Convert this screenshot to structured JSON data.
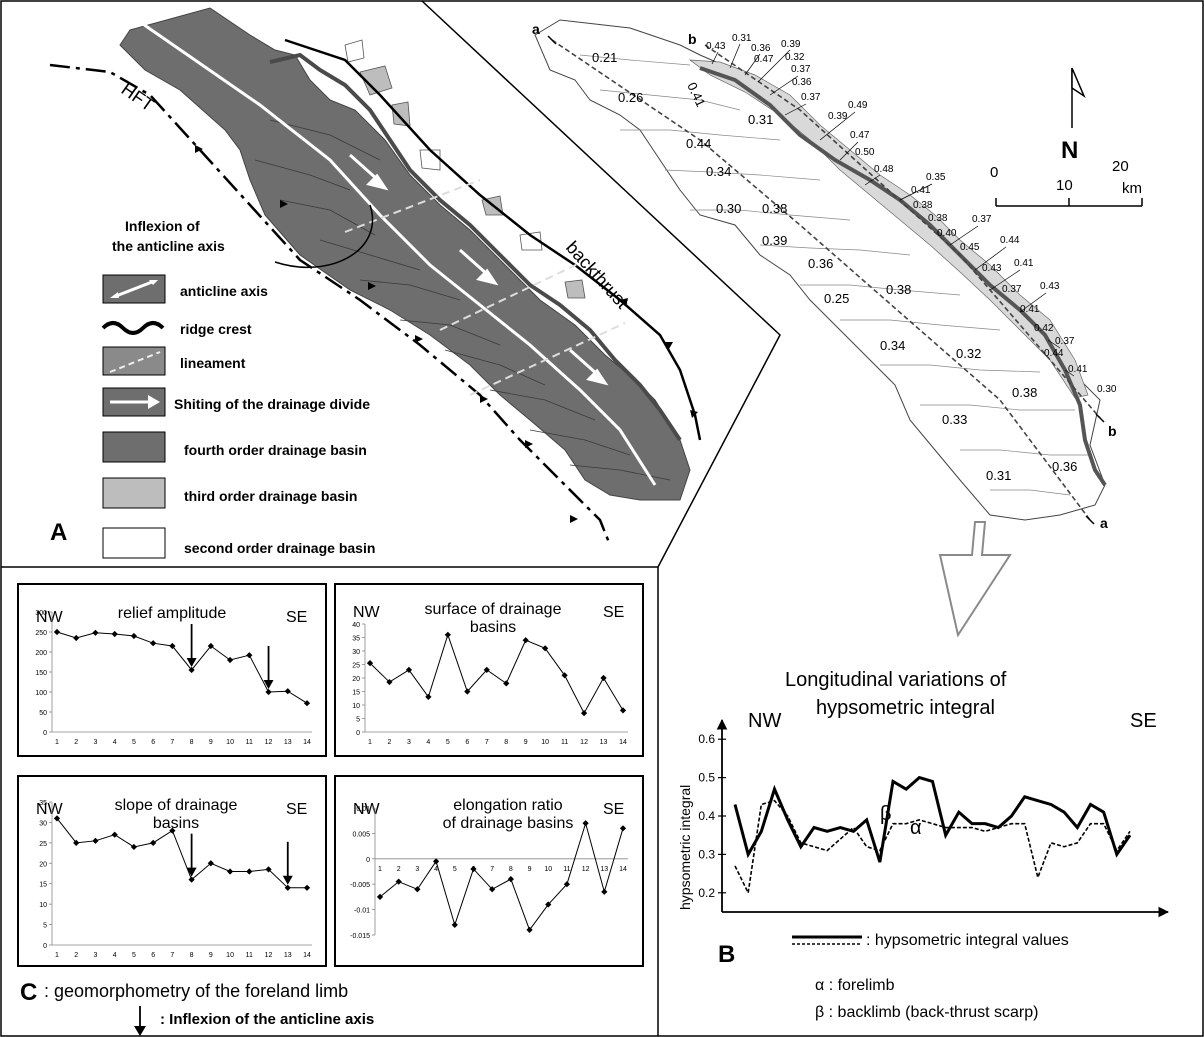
{
  "panelA": {
    "letter": "A",
    "hft": "HFT",
    "backthrust": "backthrust",
    "inflexion_label": [
      "Inflexion of",
      "the anticline axis"
    ],
    "legend": [
      {
        "id": "anticline",
        "label": "anticline axis"
      },
      {
        "id": "ridge",
        "label": "ridge crest"
      },
      {
        "id": "lineament",
        "label": "lineament"
      },
      {
        "id": "shift",
        "label": "Shiting of the drainage divide"
      },
      {
        "id": "fourth",
        "label": "fourth  order drainage basin"
      },
      {
        "id": "third",
        "label": "third  order drainage basin"
      },
      {
        "id": "second",
        "label": "second order drainage basin"
      }
    ],
    "colors": {
      "fourth": "#6e6e6e",
      "third": "#bdbdbd",
      "second": "#ffffff"
    }
  },
  "map": {
    "profile_a": "a",
    "profile_b": "b",
    "north": "N",
    "scale_ticks": [
      "0",
      "10",
      "20"
    ],
    "scale_unit": "km",
    "big_values": [
      "0.21",
      "0.26",
      "0.41",
      "0.31",
      "0.44",
      "0.34",
      "0.30",
      "0.38",
      "0.39",
      "0.36",
      "0.25",
      "0.38",
      "0.34",
      "0.32",
      "0.38",
      "0.33",
      "0.31",
      "0.36"
    ],
    "small_values": [
      "0.43",
      "0.31",
      "0.36",
      "0.39",
      "0.47",
      "0.32",
      "0.37",
      "0.36",
      "0.37",
      "0.49",
      "0.39",
      "0.47",
      "0.50",
      "0.48",
      "0.35",
      "0.41",
      "0.38",
      "0.38",
      "0.37",
      "0.40",
      "0.45",
      "0.44",
      "0.43",
      "0.41",
      "0.37",
      "0.43",
      "0.41",
      "0.42",
      "0.37",
      "0.44",
      "0.41",
      "0.30"
    ]
  },
  "panelB": {
    "letter": "B",
    "title": [
      "Longitudinal variations of",
      "hypsometric integral"
    ],
    "nw": "NW",
    "se": "SE",
    "ylabel": "hypsometric integral",
    "yticks": [
      "0.2",
      "0.3",
      "0.4",
      "0.5",
      "0.6"
    ],
    "legend_value": ":  hypsometric integral values",
    "alpha": "α",
    "beta": "β",
    "alpha_def": "α : forelimb",
    "beta_def": "β : backlimb (back-thrust scarp)"
  },
  "chart_data": [
    {
      "type": "line",
      "title": "relief amplitude",
      "x": [
        1,
        2,
        3,
        4,
        5,
        6,
        7,
        8,
        9,
        10,
        11,
        12,
        13,
        14
      ],
      "values": [
        250,
        235,
        248,
        245,
        240,
        222,
        215,
        155,
        215,
        180,
        192,
        100,
        102,
        72
      ],
      "ylim": [
        0,
        300
      ],
      "yticks": [
        0,
        50,
        100,
        150,
        200,
        250,
        300
      ],
      "arrows_at": [
        8,
        12
      ],
      "nw": "NW",
      "se": "SE"
    },
    {
      "type": "line",
      "title": "surface of drainage basins",
      "x": [
        1,
        2,
        3,
        4,
        5,
        6,
        7,
        8,
        9,
        10,
        11,
        12,
        13,
        14
      ],
      "values": [
        25.5,
        18.5,
        23,
        13,
        36,
        15,
        23,
        18,
        34,
        31,
        21,
        7,
        20,
        8
      ],
      "ylim": [
        0,
        40
      ],
      "yticks": [
        0,
        5,
        10,
        15,
        20,
        25,
        30,
        35,
        40
      ],
      "nw": "NW",
      "se": "SE"
    },
    {
      "type": "line",
      "title": "slope of drainage basins",
      "x": [
        1,
        2,
        3,
        4,
        5,
        6,
        7,
        8,
        9,
        10,
        11,
        12,
        13,
        14
      ],
      "values": [
        31,
        25,
        25.5,
        27,
        24,
        25,
        28,
        16,
        20,
        18,
        18,
        18.5,
        14,
        14
      ],
      "ylim": [
        0,
        35
      ],
      "yticks": [
        0,
        5,
        10,
        15,
        20,
        25,
        30,
        35
      ],
      "arrows_at": [
        8,
        13
      ],
      "nw": "NW",
      "se": "SE"
    },
    {
      "type": "line",
      "title": "elongation ratio of drainage basins",
      "x": [
        1,
        2,
        3,
        4,
        5,
        6,
        7,
        8,
        9,
        10,
        11,
        12,
        13,
        14
      ],
      "values": [
        -0.0075,
        -0.0045,
        -0.006,
        -0.0005,
        -0.013,
        -0.002,
        -0.006,
        -0.004,
        -0.014,
        -0.009,
        -0.005,
        0.007,
        -0.0065,
        0.006
      ],
      "ylim": [
        -0.015,
        0.01
      ],
      "yticks": [
        -0.015,
        -0.01,
        -0.005,
        0,
        0.005,
        0.01
      ],
      "nw": "NW",
      "se": "SE"
    },
    {
      "type": "line",
      "title": "hypsometric integral",
      "ylim": [
        0.15,
        0.65
      ],
      "yticks": [
        0.2,
        0.3,
        0.4,
        0.5,
        0.6
      ],
      "series": [
        {
          "values": [
            0.27,
            0.2,
            0.43,
            0.44,
            0.4,
            0.33,
            0.32,
            0.31,
            0.34,
            0.37,
            0.32,
            0.31,
            0.38,
            0.38,
            0.39,
            0.38,
            0.37,
            0.37,
            0.37,
            0.36,
            0.37,
            0.38,
            0.38,
            0.24,
            0.33,
            0.32,
            0.33,
            0.38,
            0.38,
            0.31,
            0.36
          ]
        },
        {
          "values": [
            0.43,
            0.3,
            0.36,
            0.47,
            0.39,
            0.32,
            0.37,
            0.36,
            0.37,
            0.36,
            0.39,
            0.28,
            0.49,
            0.47,
            0.5,
            0.49,
            0.35,
            0.41,
            0.38,
            0.38,
            0.37,
            0.4,
            0.45,
            0.44,
            0.43,
            0.41,
            0.37,
            0.43,
            0.41,
            0.3,
            0.35
          ]
        }
      ]
    }
  ],
  "panelC": {
    "letter": "C",
    "caption": ": geomorphometry of the foreland limb",
    "arrow_caption": ":  Inflexion of the anticline axis"
  }
}
